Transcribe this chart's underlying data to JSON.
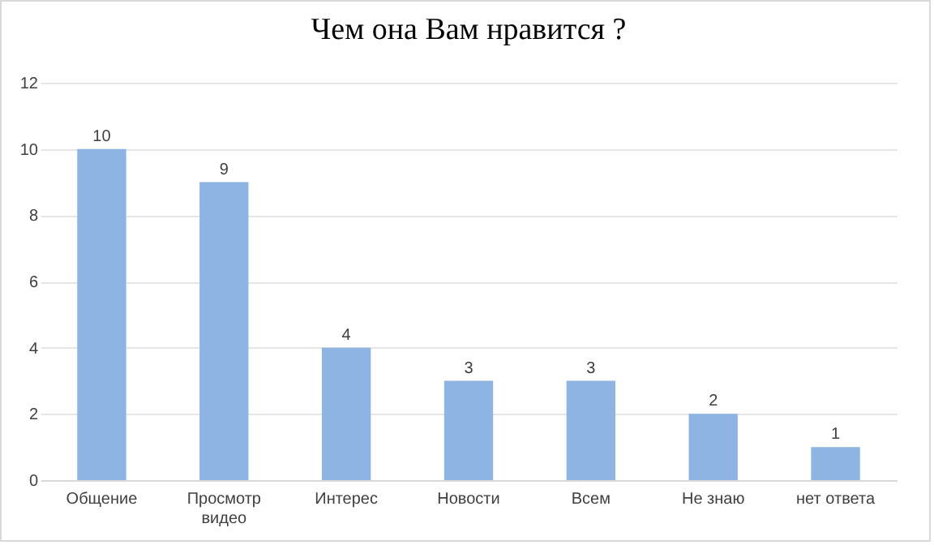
{
  "chart_data": {
    "type": "bar",
    "title": "Чем она Вам нравится ?",
    "categories": [
      "Общение",
      "Просмотр видео",
      "Интерес",
      "Новости",
      "Всем",
      "Не знаю",
      "нет ответа"
    ],
    "values": [
      10,
      9,
      4,
      3,
      3,
      2,
      1
    ],
    "color": "#8db4e2",
    "ylim": [
      0,
      12
    ],
    "yticks": [
      0,
      2,
      4,
      6,
      8,
      10,
      12
    ],
    "grid": "y",
    "data_labels": true
  }
}
